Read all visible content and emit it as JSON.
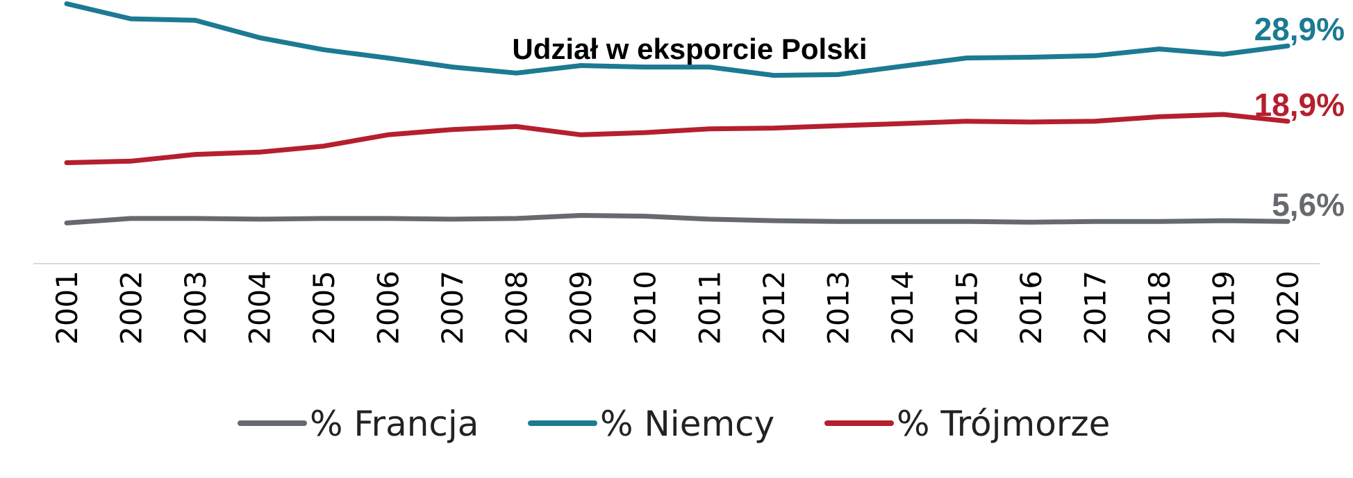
{
  "chart_data": {
    "type": "line",
    "title": "Udział w eksporcie Polski",
    "xlabel": "",
    "ylabel": "",
    "categories": [
      "2001",
      "2002",
      "2003",
      "2004",
      "2005",
      "2006",
      "2007",
      "2008",
      "2009",
      "2010",
      "2011",
      "2012",
      "2013",
      "2014",
      "2015",
      "2016",
      "2017",
      "2018",
      "2019",
      "2020"
    ],
    "ylim": [
      0,
      35
    ],
    "grid": false,
    "legend_position": "bottom",
    "series": [
      {
        "name": "% Francja",
        "color": "#666a6e",
        "end_label": "5,6%",
        "values": [
          5.4,
          6.0,
          6.0,
          5.9,
          6.0,
          6.0,
          5.9,
          6.0,
          6.4,
          6.3,
          5.9,
          5.7,
          5.6,
          5.6,
          5.6,
          5.5,
          5.6,
          5.6,
          5.7,
          5.6
        ]
      },
      {
        "name": "% Niemcy",
        "color": "#1c7a93",
        "end_label": "28,9%",
        "values": [
          34.5,
          32.5,
          32.3,
          30.0,
          28.4,
          27.3,
          26.1,
          25.3,
          26.3,
          26.1,
          26.1,
          25.0,
          25.1,
          26.2,
          27.3,
          27.4,
          27.6,
          28.5,
          27.8,
          28.9
        ]
      },
      {
        "name": "% Trójmorze",
        "color": "#b51f2e",
        "end_label": "18,9%",
        "values": [
          13.4,
          13.6,
          14.5,
          14.8,
          15.6,
          17.1,
          17.8,
          18.2,
          17.1,
          17.4,
          17.9,
          18.0,
          18.3,
          18.6,
          18.9,
          18.8,
          18.9,
          19.5,
          19.8,
          18.9
        ]
      }
    ]
  }
}
